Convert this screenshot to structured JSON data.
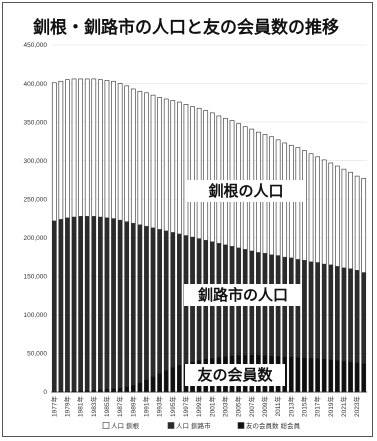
{
  "chart_data": {
    "type": "bar",
    "title": "釧根・釧路市の人口と友の会員数の推移",
    "ylim": [
      0,
      450000
    ],
    "yticks": [
      "0",
      "50,000",
      "100,000",
      "150,000",
      "200,000",
      "250,000",
      "300,000",
      "350,000",
      "400,000",
      "450,000"
    ],
    "xtick_labels": [
      "1977年",
      "1979年",
      "1981年",
      "1983年",
      "1985年",
      "1987年",
      "1989年",
      "1991年",
      "1993年",
      "1995年",
      "1997年",
      "1999年",
      "2001年",
      "2003年",
      "2005年",
      "2007年",
      "2009年",
      "2011年",
      "2013年",
      "2015年",
      "2017年",
      "2019年",
      "2021年",
      "2023年"
    ],
    "categories": [
      "1977",
      "1978",
      "1979",
      "1980",
      "1981",
      "1982",
      "1983",
      "1984",
      "1985",
      "1986",
      "1987",
      "1988",
      "1989",
      "1990",
      "1991",
      "1992",
      "1993",
      "1994",
      "1995",
      "1996",
      "1997",
      "1998",
      "1999",
      "2000",
      "2001",
      "2002",
      "2003",
      "2004",
      "2005",
      "2006",
      "2007",
      "2008",
      "2009",
      "2010",
      "2011",
      "2012",
      "2013",
      "2014",
      "2015",
      "2016",
      "2017",
      "2018",
      "2019",
      "2020",
      "2021",
      "2022",
      "2023",
      "2024"
    ],
    "series": [
      {
        "name": "人口 釧根",
        "values": [
          401000,
          403000,
          405000,
          406000,
          406000,
          406000,
          406000,
          405000,
          404000,
          403000,
          400000,
          397000,
          393000,
          390000,
          388000,
          385000,
          382000,
          380000,
          378000,
          376000,
          373000,
          370000,
          368000,
          365000,
          362000,
          358000,
          355000,
          352000,
          348000,
          344000,
          341000,
          337000,
          334000,
          331000,
          327000,
          323000,
          320000,
          317000,
          313000,
          309000,
          305000,
          301000,
          297000,
          293000,
          289000,
          285000,
          280000,
          277000
        ]
      },
      {
        "name": "人口 釧路市",
        "values": [
          222000,
          224000,
          226000,
          227000,
          228000,
          228000,
          228000,
          227000,
          226000,
          225000,
          223000,
          221000,
          219000,
          217000,
          215000,
          213000,
          211000,
          209000,
          207000,
          205000,
          203000,
          201000,
          199000,
          197000,
          195000,
          193000,
          191000,
          189000,
          187000,
          185000,
          183000,
          181000,
          180000,
          178000,
          177000,
          175000,
          174000,
          172000,
          171000,
          169000,
          168000,
          166000,
          165000,
          163000,
          161000,
          160000,
          158000,
          155000
        ]
      },
      {
        "name": "友の会員数 総会員",
        "values": [
          800,
          1000,
          1200,
          1500,
          1800,
          2200,
          2600,
          3200,
          3800,
          4500,
          5500,
          7000,
          9000,
          12000,
          16000,
          20000,
          24000,
          28000,
          32000,
          35000,
          37000,
          39000,
          41000,
          43000,
          44000,
          45000,
          46000,
          47000,
          47500,
          48000,
          48000,
          48000,
          47500,
          47000,
          46500,
          46000,
          45500,
          45000,
          44500,
          44000,
          43500,
          43000,
          42000,
          41000,
          40000,
          39000,
          38000,
          37000
        ]
      }
    ],
    "annotations": [
      "釧根の人口",
      "釧路市の人口",
      "友の会員数"
    ],
    "colors": {
      "pop_kushiro_nemuro": "#ffffff",
      "pop_kushiro_city": "#2b2b2b",
      "members": "#0f0f0f",
      "bar_edge": "#2b2b2b",
      "grid": "#e0e0e0",
      "overlay_bg": "#ffffff"
    },
    "grid": true,
    "legend_position": "bottom"
  }
}
